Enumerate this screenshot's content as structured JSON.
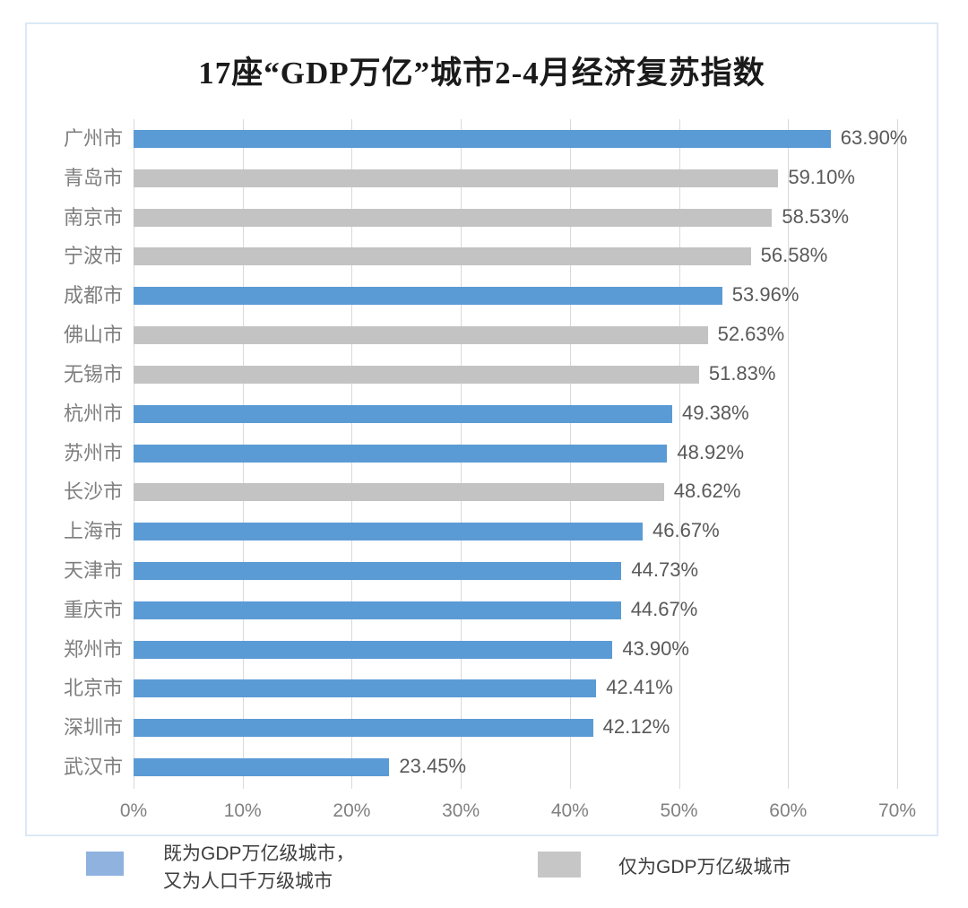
{
  "title": "17座“GDP万亿”城市2-4月经济复苏指数",
  "chart_data": {
    "type": "bar",
    "orientation": "horizontal",
    "title": "17座“GDP万亿”城市2-4月经济复苏指数",
    "categories": [
      "广州市",
      "青岛市",
      "南京市",
      "宁波市",
      "成都市",
      "佛山市",
      "无锡市",
      "杭州市",
      "苏州市",
      "长沙市",
      "上海市",
      "天津市",
      "重庆市",
      "郑州市",
      "北京市",
      "深圳市",
      "武汉市"
    ],
    "values": [
      63.9,
      59.1,
      58.53,
      56.58,
      53.96,
      52.63,
      51.83,
      49.38,
      48.92,
      48.62,
      46.67,
      44.73,
      44.67,
      43.9,
      42.41,
      42.12,
      23.45
    ],
    "value_labels": [
      "63.90%",
      "59.10%",
      "58.53%",
      "56.58%",
      "53.96%",
      "52.63%",
      "51.83%",
      "49.38%",
      "48.92%",
      "48.62%",
      "46.67%",
      "44.73%",
      "44.67%",
      "43.90%",
      "42.41%",
      "42.12%",
      "23.45%"
    ],
    "series_membership": [
      "blue",
      "gray",
      "gray",
      "gray",
      "blue",
      "gray",
      "gray",
      "blue",
      "blue",
      "gray",
      "blue",
      "blue",
      "blue",
      "blue",
      "blue",
      "blue",
      "blue"
    ],
    "x_ticks": [
      "0%",
      "10%",
      "20%",
      "30%",
      "40%",
      "50%",
      "60%",
      "70%"
    ],
    "xlim": [
      0,
      70
    ],
    "grid": "vertical",
    "legend_position": "bottom",
    "colors": {
      "blue": "#5b9bd5",
      "gray": "#c3c3c3"
    }
  },
  "legend": {
    "item1": {
      "line1": "既为GDP万亿级城市，",
      "line2": "又为人口千万级城市",
      "color": "#8fb2df"
    },
    "item2": {
      "label": "仅为GDP万亿级城市",
      "color": "#c6c6c6"
    }
  }
}
